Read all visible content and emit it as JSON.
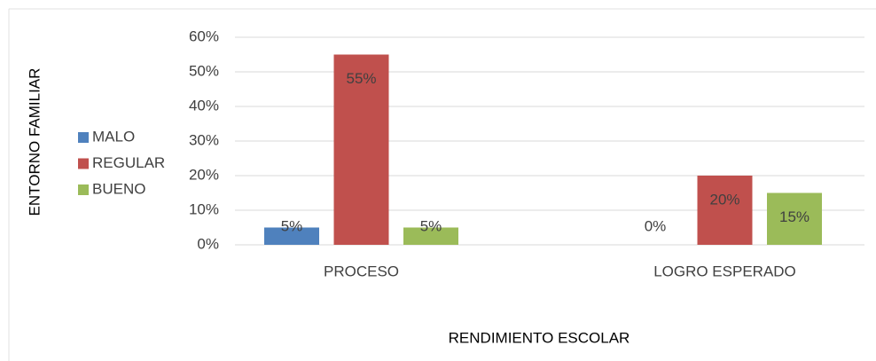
{
  "chart_data": {
    "type": "bar",
    "categories": [
      "PROCESO",
      "LOGRO ESPERADO"
    ],
    "series": [
      {
        "name": "MALO",
        "color": "#4f81bd",
        "values": [
          5,
          0
        ],
        "value_labels": [
          "5%",
          "0%"
        ]
      },
      {
        "name": "REGULAR",
        "color": "#c0504d",
        "values": [
          55,
          20
        ],
        "value_labels": [
          "55%",
          "20%"
        ]
      },
      {
        "name": "BUENO",
        "color": "#9bbb59",
        "values": [
          5,
          15
        ],
        "value_labels": [
          "5%",
          "15%"
        ]
      }
    ],
    "ylim": [
      0,
      60
    ],
    "yticks": [
      {
        "value": 0,
        "label": "0%"
      },
      {
        "value": 10,
        "label": "10%"
      },
      {
        "value": 20,
        "label": "20%"
      },
      {
        "value": 30,
        "label": "30%"
      },
      {
        "value": 40,
        "label": "40%"
      },
      {
        "value": 50,
        "label": "50%"
      },
      {
        "value": 60,
        "label": "60%"
      }
    ],
    "xlabel": "RENDIMIENTO ESCOLAR",
    "ylabel": "ENTORNO FAMILIAR",
    "grid": true,
    "legend": "left"
  }
}
